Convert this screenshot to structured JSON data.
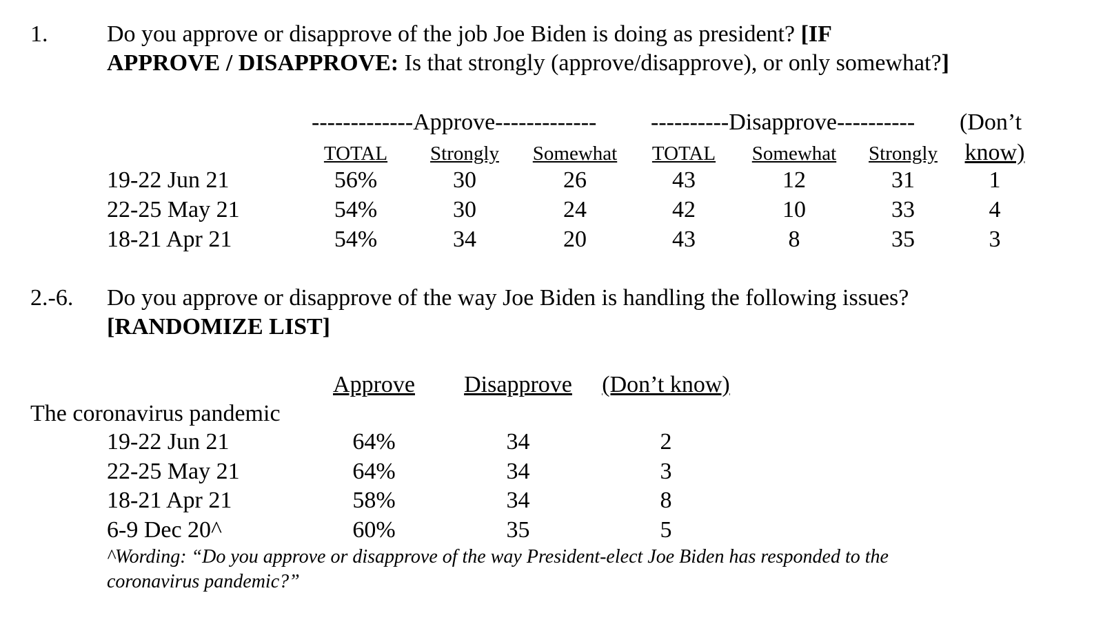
{
  "q1": {
    "number": "1.",
    "line1": "Do you approve or disapprove of the job Joe Biden is doing as president?",
    "line1_bold": "[IF",
    "line2_bold": "APPROVE / DISAPPROVE:",
    "line2": "Is that strongly (approve/disapprove), or only somewhat?",
    "line2_end": "]",
    "group_approve": "-------------Approve-------------",
    "group_disapprove": "----------Disapprove----------",
    "dk_top": "(Don’t",
    "headers": [
      "TOTAL",
      "Strongly",
      "Somewhat",
      "TOTAL",
      "Somewhat",
      "Strongly",
      "know)"
    ],
    "rows": [
      {
        "label": "19-22 Jun 21",
        "values": [
          "56%",
          "30",
          "26",
          "43",
          "12",
          "31",
          "1"
        ]
      },
      {
        "label": "22-25 May 21",
        "values": [
          "54%",
          "30",
          "24",
          "42",
          "10",
          "33",
          "4"
        ]
      },
      {
        "label": "18-21 Apr 21",
        "values": [
          "54%",
          "34",
          "20",
          "43",
          "8",
          "35",
          "3"
        ]
      }
    ]
  },
  "q2": {
    "number": "2.-6.",
    "line1": "Do you approve or disapprove of the way Joe Biden is handling the following issues?",
    "line2_bold": "[RANDOMIZE LIST]",
    "headers": [
      "Approve",
      "Disapprove",
      "(Don’t know)"
    ],
    "topic": "The coronavirus pandemic",
    "rows": [
      {
        "label": "19-22 Jun 21",
        "values": [
          "64%",
          "34",
          "2"
        ]
      },
      {
        "label": "22-25 May 21",
        "values": [
          "64%",
          "34",
          "3"
        ]
      },
      {
        "label": "18-21 Apr 21",
        "values": [
          "58%",
          "34",
          "8"
        ]
      },
      {
        "label": "6-9 Dec 20^",
        "values": [
          "60%",
          "35",
          "5"
        ]
      }
    ],
    "footnote_line1": "^Wording: “Do you approve or disapprove of the way President-elect Joe Biden has responded to the",
    "footnote_line2": "coronavirus pandemic?”"
  }
}
